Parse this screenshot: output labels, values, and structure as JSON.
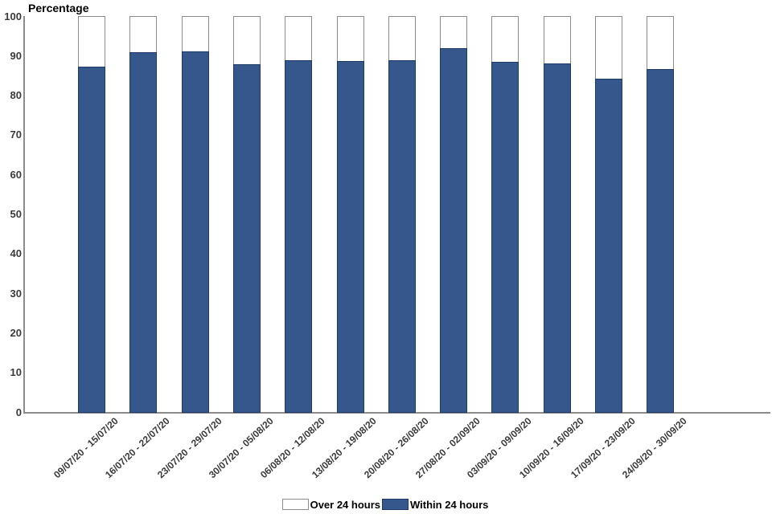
{
  "chart_data": {
    "type": "bar",
    "stacked": true,
    "title": "Percentage",
    "ylabel": "Percentage",
    "xlabel": "",
    "ylim": [
      0,
      100
    ],
    "yticks": [
      0,
      10,
      20,
      30,
      40,
      50,
      60,
      70,
      80,
      90,
      100
    ],
    "grid": false,
    "legend_position": "bottom",
    "categories": [
      "09/07/20 - 15/07/20",
      "16/07/20 - 22/07/20",
      "23/07/20 - 29/07/20",
      "30/07/20 - 05/08/20",
      "06/08/20 - 12/08/20",
      "13/08/20 - 19/08/20",
      "20/08/20 - 26/08/20",
      "27/08/20 - 02/09/20",
      "03/09/20 - 09/09/20",
      "10/09/20 - 16/09/20",
      "17/09/20 - 23/09/20",
      "24/09/20 - 30/09/20"
    ],
    "series": [
      {
        "name": "Within 24 hours",
        "color": "#35578C",
        "border": "#1B3A68",
        "values": [
          87.4,
          91.0,
          91.2,
          88.1,
          89.0,
          88.8,
          89.1,
          92.0,
          88.7,
          88.2,
          84.3,
          86.9
        ]
      },
      {
        "name": "Over 24 hours",
        "color": "#FFFFFF",
        "border": "#8C8C8C",
        "values": [
          12.6,
          9.0,
          8.8,
          11.9,
          11.0,
          11.2,
          10.9,
          8.0,
          11.3,
          11.8,
          15.7,
          13.1
        ]
      }
    ],
    "legend": [
      {
        "label": "Over 24 hours",
        "color": "#FFFFFF",
        "border": "#8C8C8C"
      },
      {
        "label": "Within 24 hours",
        "color": "#35578C",
        "border": "#1B3A68"
      }
    ],
    "colors": {
      "axis": "#8C8C8C",
      "tick_text": "#3B3B3B",
      "title_text": "#000000"
    }
  }
}
